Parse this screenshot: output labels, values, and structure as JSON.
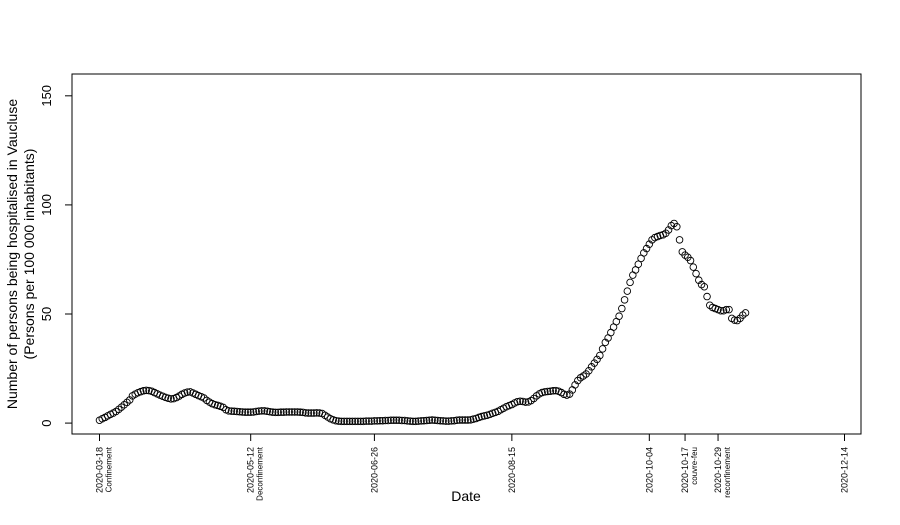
{
  "chart_data": {
    "type": "scatter",
    "xlabel": "Date",
    "ylabel": "Number of persons being hospitalised in Vaucluse",
    "ylabel_sub": "(Persons per 100 000 inhabitants)",
    "ylim": [
      -5,
      160
    ],
    "yticks": [
      0,
      50,
      100,
      150
    ],
    "xlim": [
      "2020-03-08",
      "2020-12-20"
    ],
    "xticks": [
      {
        "date": "2020-03-18",
        "label": "2020-03-18",
        "note": "Confinement"
      },
      {
        "date": "2020-05-12",
        "label": "2020-05-12",
        "note": "Deconfinement"
      },
      {
        "date": "2020-06-26",
        "label": "2020-06-26",
        "note": ""
      },
      {
        "date": "2020-08-15",
        "label": "2020-08-15",
        "note": ""
      },
      {
        "date": "2020-10-04",
        "label": "2020-10-04",
        "note": ""
      },
      {
        "date": "2020-10-17",
        "label": "2020-10-17",
        "note": "couvre-feu"
      },
      {
        "date": "2020-10-29",
        "label": "2020-10-29",
        "note": "reconfinement"
      },
      {
        "date": "2020-12-14",
        "label": "2020-12-14",
        "note": ""
      }
    ],
    "grid": false,
    "marker": "open-circle",
    "start_date": "2020-03-18",
    "values": [
      1.3,
      2.0,
      2.6,
      3.3,
      4.0,
      4.6,
      5.3,
      6.3,
      7.3,
      8.4,
      9.5,
      10.6,
      12.5,
      13.3,
      13.9,
      14.4,
      14.8,
      15.0,
      14.9,
      14.6,
      14.0,
      13.4,
      12.8,
      12.3,
      11.8,
      11.4,
      11.1,
      11.2,
      11.7,
      12.4,
      13.2,
      13.8,
      14.2,
      14.3,
      13.8,
      13.2,
      12.6,
      12.1,
      11.5,
      10.4,
      9.6,
      8.9,
      8.4,
      8.1,
      7.7,
      7.2,
      6.1,
      5.6,
      5.5,
      5.4,
      5.3,
      5.2,
      5.1,
      5.0,
      5.0,
      5.0,
      5.1,
      5.3,
      5.5,
      5.6,
      5.6,
      5.4,
      5.2,
      5.0,
      4.9,
      4.9,
      5.0,
      5.0,
      5.1,
      5.1,
      5.1,
      5.1,
      5.1,
      5.0,
      4.9,
      4.7,
      4.6,
      4.6,
      4.6,
      4.7,
      4.6,
      4.4,
      3.6,
      2.8,
      2.0,
      1.5,
      1.1,
      0.9,
      0.8,
      0.8,
      0.8,
      0.8,
      0.8,
      0.8,
      0.8,
      0.8,
      0.8,
      0.9,
      0.9,
      0.9,
      1.0,
      1.0,
      1.1,
      1.1,
      1.2,
      1.2,
      1.3,
      1.3,
      1.3,
      1.3,
      1.2,
      1.2,
      1.0,
      0.9,
      0.8,
      0.8,
      0.9,
      1.0,
      1.1,
      1.2,
      1.3,
      1.4,
      1.3,
      1.2,
      1.1,
      1.0,
      0.9,
      0.9,
      1.0,
      1.1,
      1.3,
      1.4,
      1.4,
      1.4,
      1.4,
      1.5,
      1.8,
      2.1,
      2.6,
      3.0,
      3.3,
      3.6,
      4.0,
      4.5,
      4.9,
      5.4,
      6.1,
      6.8,
      7.5,
      8.0,
      8.5,
      9.2,
      9.8,
      10.0,
      9.9,
      9.6,
      9.7,
      10.3,
      11.3,
      12.5,
      13.4,
      14.0,
      14.3,
      14.5,
      14.6,
      14.8,
      14.9,
      14.6,
      14.0,
      13.2,
      12.8,
      13.3,
      15.2,
      17.5,
      19.5,
      20.8,
      21.6,
      22.5,
      24.0,
      25.8,
      27.5,
      29.2,
      31.0,
      34.0,
      37.0,
      39.0,
      41.5,
      44.0,
      46.5,
      49.0,
      52.5,
      56.5,
      60.5,
      64.5,
      67.8,
      70.2,
      72.8,
      75.5,
      78.0,
      80.0,
      82.0,
      84.0,
      85.0,
      85.5,
      86.0,
      86.3,
      87.0,
      88.5,
      90.5,
      91.5,
      90.0,
      84.0,
      78.5,
      77.0,
      76.0,
      74.5,
      71.5,
      68.5,
      65.5,
      63.5,
      62.5,
      58.0,
      54.0,
      53.0,
      52.5,
      52.0,
      51.5,
      51.5,
      52.0,
      52.0,
      48.0,
      47.2,
      47.0,
      48.0,
      49.5,
      50.5
    ]
  }
}
